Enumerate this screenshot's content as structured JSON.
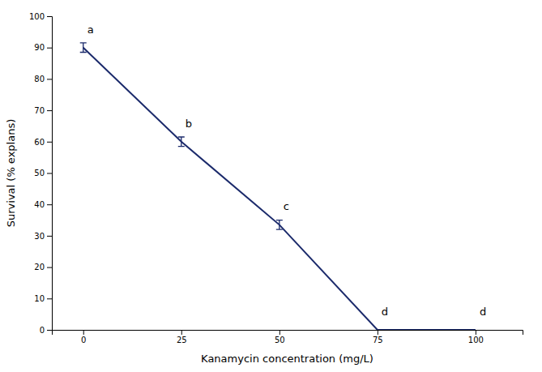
{
  "chart_data": {
    "type": "line",
    "xlabel": "Kanamycin concentration (mg/L)",
    "ylabel": "Survival (% explans)",
    "x": [
      0,
      25,
      50,
      75,
      100
    ],
    "values": [
      90,
      60,
      33.5,
      0,
      0
    ],
    "errors": [
      1.5,
      1.5,
      1.5,
      0,
      0
    ],
    "color": "#1B2A6B",
    "xlim": [
      -8,
      112
    ],
    "ylim": [
      0,
      100
    ],
    "xticks": [
      0,
      25,
      50,
      75,
      100
    ],
    "yticks": [
      0,
      10,
      20,
      30,
      40,
      50,
      60,
      70,
      80,
      90,
      100
    ],
    "grid": false,
    "annotations": [
      {
        "x": 0,
        "y": 94,
        "text": "a"
      },
      {
        "x": 25,
        "y": 64,
        "text": "b"
      },
      {
        "x": 50,
        "y": 37.5,
        "text": "c"
      },
      {
        "x": 75,
        "y": 4,
        "text": "d"
      },
      {
        "x": 100,
        "y": 4,
        "text": "d"
      }
    ]
  }
}
